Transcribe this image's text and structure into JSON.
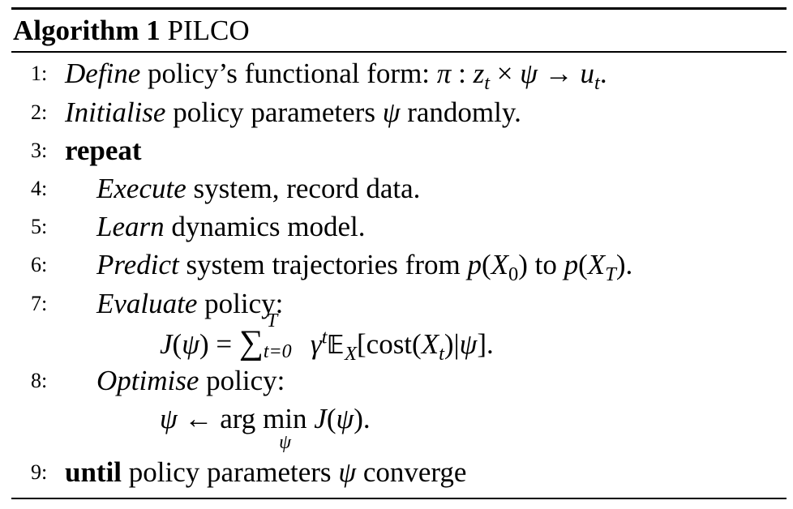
{
  "algorithm": {
    "label": "Algorithm 1",
    "name": "PILCO"
  },
  "lines": {
    "l1": {
      "num": "1:",
      "emph": "Define",
      "text": " policy’s functional form: ",
      "math_pi": "π",
      "math_colon": " : ",
      "math_z": "z",
      "math_t1": "t",
      "math_times": " × ",
      "math_psi": "ψ",
      "math_arrow": " → ",
      "math_u": "u",
      "math_t2": "t",
      "end": "."
    },
    "l2": {
      "num": "2:",
      "emph": "Initialise",
      "text": " policy parameters ",
      "math_psi": "ψ",
      "end": " randomly."
    },
    "l3": {
      "num": "3:",
      "keyword": "repeat"
    },
    "l4": {
      "num": "4:",
      "emph": "Execute",
      "text": " system, record data."
    },
    "l5": {
      "num": "5:",
      "emph": "Learn",
      "text": " dynamics model."
    },
    "l6": {
      "num": "6:",
      "emph": "Predict",
      "text": " system trajectories from ",
      "math_p1": "p",
      "math_open1": "(",
      "math_X1": "X",
      "math_sub1": "0",
      "math_close1": ")",
      "mid": " to ",
      "math_p2": "p",
      "math_open2": "(",
      "math_X2": "X",
      "math_sub2": "T",
      "math_close2": ")",
      "end": "."
    },
    "l7": {
      "num": "7:",
      "emph": "Evaluate",
      "text": " policy:"
    },
    "l7_eq": {
      "J": "J",
      "open": "(",
      "psi": "ψ",
      "close": ")",
      "eq": " = ",
      "sum": "∑",
      "sum_upper": "T",
      "sum_lower": "t=0",
      "gamma": "γ",
      "gamma_sup": "t",
      "E": "𝔼",
      "E_sub": "X",
      "bracket_open": "[",
      "cost": "cost",
      "paren_open": "(",
      "X": "X",
      "X_sub": "t",
      "paren_close": ")",
      "bar": "|",
      "psi2": "ψ",
      "bracket_close": "]",
      "end": "."
    },
    "l8": {
      "num": "8:",
      "emph": "Optimise",
      "text": " policy:"
    },
    "l8_eq": {
      "psi": "ψ",
      "arrow": " ← ",
      "arg": "arg",
      "min": "min",
      "min_sub": "ψ",
      "J": "J",
      "open": "(",
      "psi2": "ψ",
      "close": ")",
      "end": "."
    },
    "l9": {
      "num": "9:",
      "keyword": "until",
      "text": " policy parameters ",
      "math_psi": "ψ",
      "end": " converge"
    }
  }
}
